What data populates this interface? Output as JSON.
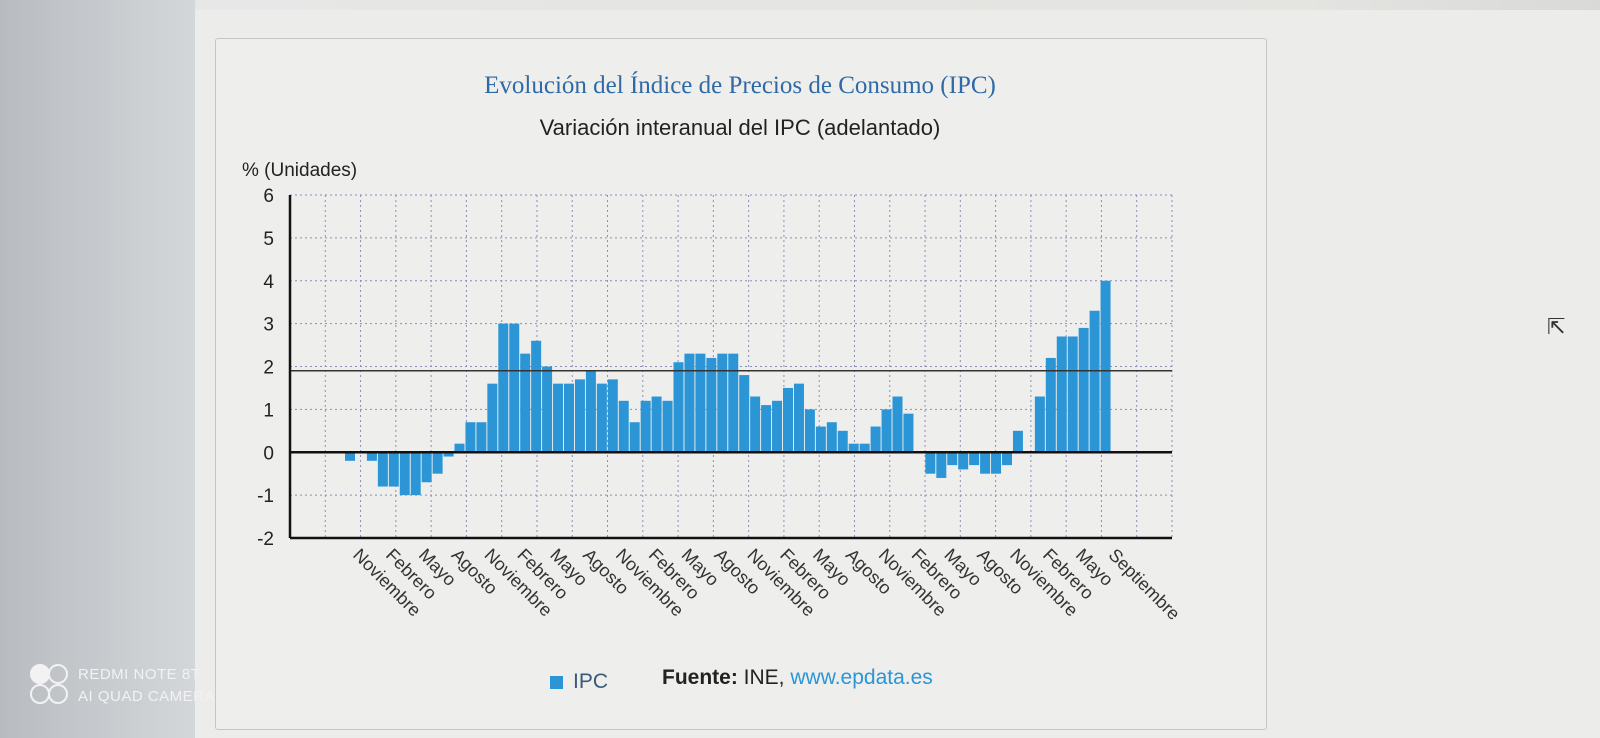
{
  "watermark": {
    "line1": "REDMI NOTE 8T",
    "line2": "AI QUAD CAMERA"
  },
  "legend_label": "IPC",
  "source": {
    "label": "Fuente:",
    "text": "INE,",
    "url": "www.epdata.es"
  },
  "colors": {
    "bar": "#2b95d6",
    "title": "#2f6aa7",
    "grid": "#8a8fb8"
  },
  "chart_data": {
    "type": "bar",
    "title": "Evolución del Índice de Precios de Consumo (IPC)",
    "subtitle": "Variación interanual del IPC (adelantado)",
    "ylabel": "% (Unidades)",
    "ylim": [
      -2,
      6
    ],
    "yticks": [
      6,
      5,
      4,
      3,
      2,
      1,
      0,
      -1,
      -2
    ],
    "reference_line": 1.9,
    "grid": true,
    "series": [
      {
        "name": "IPC",
        "values": [
          -0.2,
          0,
          -0.2,
          -0.8,
          -0.8,
          -1.0,
          -1.0,
          -0.7,
          -0.5,
          -0.1,
          0.2,
          0.7,
          0.7,
          1.6,
          3.0,
          3.0,
          2.3,
          2.6,
          2.0,
          1.6,
          1.6,
          1.7,
          1.9,
          1.6,
          1.7,
          1.2,
          0.7,
          1.2,
          1.3,
          1.2,
          2.1,
          2.3,
          2.3,
          2.2,
          2.3,
          2.3,
          1.8,
          1.3,
          1.1,
          1.2,
          1.5,
          1.6,
          1.0,
          0.6,
          0.7,
          0.5,
          0.2,
          0.2,
          0.6,
          1.0,
          1.3,
          0.9,
          0.0,
          -0.5,
          -0.6,
          -0.3,
          -0.4,
          -0.3,
          -0.5,
          -0.5,
          -0.3,
          0.5,
          0.0,
          1.3,
          2.2,
          2.7,
          2.7,
          2.9,
          3.3,
          4.0
        ]
      }
    ],
    "x_tick_labels": [
      "Noviembre",
      "Febrero",
      "Mayo",
      "Agosto",
      "Noviembre",
      "Febrero",
      "Mayo",
      "Agosto",
      "Noviembre",
      "Febrero",
      "Mayo",
      "Agosto",
      "Noviembre",
      "Febrero",
      "Mayo",
      "Agosto",
      "Noviembre",
      "Febrero",
      "Mayo",
      "Agosto",
      "Noviembre",
      "Febrero",
      "Mayo",
      "Septiembre"
    ]
  }
}
